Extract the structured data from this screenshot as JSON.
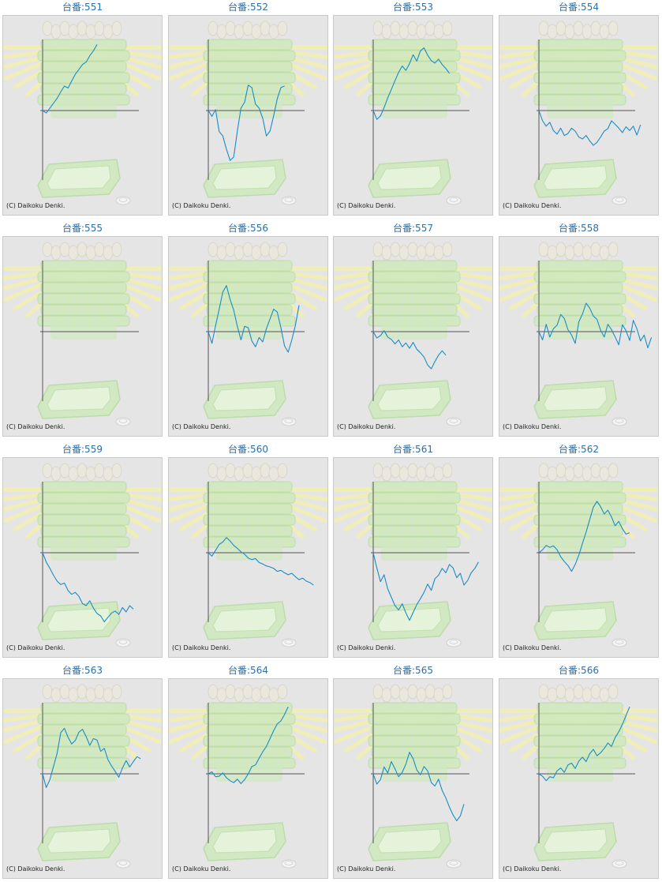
{
  "title_prefix": "台番:",
  "credit": "(C) Daikoku Denki.",
  "colors": {
    "line": "#1a8cc4",
    "axis": "#555555",
    "panel_bg": "#e5e5e5",
    "title": "#2a6fa8",
    "decor_green": "#cfe9bf",
    "decor_rays": "#f2f0b2"
  },
  "chart_data": [
    {
      "type": "line",
      "title": "台番:551",
      "number": "551",
      "values": [
        0,
        -0.5,
        0.5,
        1.5,
        2.5,
        3.8,
        5,
        4.6,
        6,
        7.4,
        8.4,
        9.4,
        9.9,
        11.2,
        12.2,
        13.5
      ]
    },
    {
      "type": "line",
      "title": "台番:552",
      "number": "552",
      "values": [
        0,
        -1.2,
        0.2,
        -4.3,
        -5.2,
        -7.9,
        -10.2,
        -9.5,
        -4.2,
        0.5,
        1.7,
        5.2,
        4.7,
        1.3,
        0.5,
        -1.6,
        -5.2,
        -4.2,
        -1.1,
        2.4,
        4.7,
        5
      ]
    },
    {
      "type": "line",
      "title": "台番:553",
      "number": "553",
      "values": [
        0,
        -1.8,
        -1.1,
        0.6,
        2.6,
        4.3,
        6.1,
        7.8,
        9.1,
        8.2,
        9.6,
        11.4,
        10.1,
        12.2,
        12.8,
        11.3,
        10.2,
        9.7,
        10.5,
        9.4,
        8.6,
        7.6
      ]
    },
    {
      "type": "line",
      "title": "台番:554",
      "number": "554",
      "values": [
        0,
        -2.1,
        -3.2,
        -2.4,
        -4.1,
        -4.8,
        -3.6,
        -5.1,
        -4.7,
        -3.6,
        -4.2,
        -5.4,
        -5.8,
        -5.1,
        -6.2,
        -7.1,
        -6.5,
        -5.4,
        -4.2,
        -3.7,
        -2.1,
        -2.8,
        -3.6,
        -4.5,
        -3.3,
        -4.1,
        -3.2,
        -5,
        -2.9
      ]
    },
    {
      "type": "line",
      "title": "台番:555",
      "number": "555",
      "values": []
    },
    {
      "type": "line",
      "title": "台番:556",
      "number": "556",
      "values": [
        0,
        -2.4,
        1.2,
        4.6,
        8.1,
        9.4,
        6.6,
        4.4,
        1.1,
        -1.7,
        1.1,
        0.8,
        -1.9,
        -3.1,
        -1.2,
        -2.1,
        0.6,
        2.6,
        4.6,
        4,
        0.8,
        -2.9,
        -4.2,
        -1.7,
        1.3,
        5.4
      ]
    },
    {
      "type": "line",
      "title": "台番:557",
      "number": "557",
      "values": [
        0,
        -1.3,
        -0.8,
        0.2,
        -1.1,
        -1.6,
        -2.5,
        -1.7,
        -3.1,
        -2.3,
        -3.4,
        -2.2,
        -3.6,
        -4.3,
        -5.2,
        -6.8,
        -7.6,
        -6.1,
        -4.8,
        -3.9,
        -4.8
      ]
    },
    {
      "type": "line",
      "title": "台番:558",
      "number": "558",
      "values": [
        0,
        -1.7,
        1.5,
        -1.1,
        0.6,
        1.3,
        3.5,
        2.7,
        0.4,
        -0.7,
        -2.4,
        2,
        3.6,
        5.8,
        4.8,
        3.2,
        2.5,
        0.3,
        -1.1,
        1.5,
        0.4,
        -1.1,
        -2.7,
        1.4,
        0.2,
        -1.8,
        2.3,
        0.6,
        -1.9,
        -0.7,
        -3.3,
        -1.2
      ]
    },
    {
      "type": "line",
      "title": "台番:559",
      "number": "559",
      "values": [
        0,
        -1.9,
        -3.2,
        -4.6,
        -5.8,
        -6.5,
        -6.2,
        -7.7,
        -8.5,
        -8.1,
        -8.9,
        -10.4,
        -10.8,
        -9.8,
        -11.3,
        -12.4,
        -12.9,
        -14.1,
        -13.2,
        -12.3,
        -11.9,
        -12.6,
        -11.2,
        -12.1,
        -10.8,
        -11.5
      ]
    },
    {
      "type": "line",
      "title": "台番:560",
      "number": "560",
      "values": [
        0,
        -0.7,
        0.5,
        1.7,
        2.2,
        3.1,
        2.4,
        1.5,
        0.9,
        0.2,
        -0.3,
        -1.1,
        -1.4,
        -1.2,
        -2,
        -2.3,
        -2.7,
        -2.9,
        -3.2,
        -3.8,
        -3.6,
        -4.1,
        -4.5,
        -4.2,
        -4.9,
        -5.5,
        -5.2,
        -5.8,
        -6.1,
        -6.6
      ]
    },
    {
      "type": "line",
      "title": "台番:561",
      "number": "561",
      "values": [
        0,
        -3.1,
        -5.9,
        -4.5,
        -7.4,
        -9.1,
        -10.8,
        -11.7,
        -10.4,
        -12.3,
        -13.8,
        -12.2,
        -10.6,
        -9.4,
        -8.1,
        -6.4,
        -7.7,
        -5.3,
        -4.6,
        -3.2,
        -4.1,
        -2.4,
        -3.1,
        -5.1,
        -4.2,
        -6.6,
        -5.7,
        -4.1,
        -3.2,
        -1.9
      ]
    },
    {
      "type": "line",
      "title": "台番:562",
      "number": "562",
      "values": [
        0,
        0.6,
        1.5,
        1.1,
        1.4,
        0.6,
        -0.8,
        -1.8,
        -2.6,
        -3.8,
        -2.4,
        -0.5,
        1.9,
        4.2,
        6.8,
        9.3,
        10.5,
        9.4,
        7.9,
        8.7,
        7.3,
        5.5,
        6.4,
        4.9,
        3.8,
        4.1
      ]
    },
    {
      "type": "line",
      "title": "台番:563",
      "number": "563",
      "values": [
        0,
        -2.8,
        -1.2,
        1.5,
        4.2,
        8.4,
        9.3,
        7.5,
        6.1,
        6.8,
        8.5,
        9.1,
        7.6,
        5.8,
        7.2,
        6.9,
        4.6,
        5.2,
        2.9,
        1.6,
        0.5,
        -0.7,
        1.2,
        2.7,
        1.4,
        2.5,
        3.5,
        3.1
      ]
    },
    {
      "type": "line",
      "title": "台番:564",
      "number": "564",
      "values": [
        0,
        0.4,
        -0.6,
        -0.5,
        0.2,
        -0.8,
        -1.4,
        -1.8,
        -1.1,
        -2,
        -1.2,
        0,
        1.5,
        1.8,
        3.2,
        4.5,
        5.6,
        7.2,
        8.8,
        10.2,
        10.8,
        12.1,
        13.7
      ]
    },
    {
      "type": "line",
      "title": "台番:565",
      "number": "565",
      "values": [
        0,
        -2.1,
        -1.2,
        1.4,
        0.2,
        2.5,
        1,
        -0.6,
        0.3,
        2,
        4.4,
        3.1,
        0.8,
        -0.2,
        1.5,
        0.6,
        -1.8,
        -2.5,
        -1.1,
        -3.4,
        -4.9,
        -6.8,
        -8.4,
        -9.6,
        -8.6,
        -6.2
      ]
    },
    {
      "type": "line",
      "title": "台番:566",
      "number": "566",
      "values": [
        0,
        -0.5,
        -1.4,
        -0.6,
        -0.8,
        0.6,
        1.2,
        0.3,
        1.8,
        2.2,
        1.1,
        2.6,
        3.4,
        2.5,
        4.1,
        5,
        3.7,
        4.3,
        5.2,
        6.3,
        5.6,
        7.4,
        8.6,
        10.1,
        11.9,
        13.7
      ]
    }
  ]
}
